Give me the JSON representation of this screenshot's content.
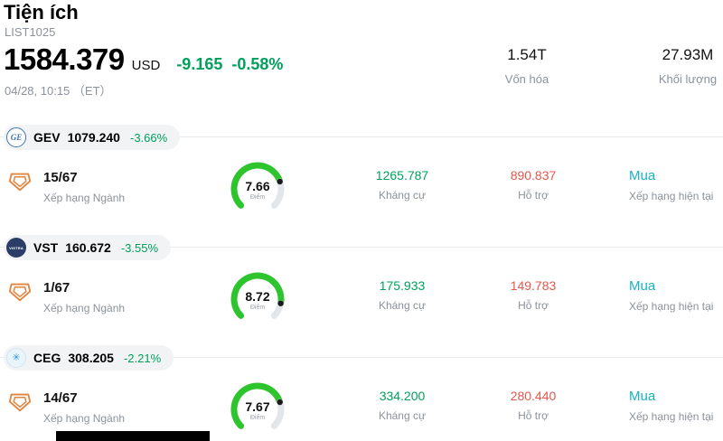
{
  "header": {
    "title": "Tiện ích",
    "list_code": "LIST1025",
    "price": "1584.379",
    "currency": "USD",
    "change": "-9.165",
    "change_pct": "-0.58%",
    "datetime": "04/28, 10:15 （ET）",
    "market_cap_value": "1.54T",
    "market_cap_label": "Vốn hóa",
    "volume_value": "27.93M",
    "volume_label": "Khối lượng"
  },
  "labels": {
    "rank": "Xếp hạng Ngành",
    "score_unit": "Điểm",
    "resistance": "Kháng cự",
    "support": "Hỗ trợ",
    "rating": "Xếp hạng hiện tại"
  },
  "colors": {
    "up_green": "#00a05c",
    "down_red": "#e2574d",
    "buy_teal": "#17b3c1",
    "gauge_green": "#2dc42d",
    "gauge_track": "#e2e5e9"
  },
  "stocks": [
    {
      "symbol": "GEV",
      "price": "1079.240",
      "change_pct": "-3.66%",
      "rank": "15/67",
      "score": "7.66",
      "score_value": 7.66,
      "score_max": 10,
      "resistance": "1265.787",
      "support": "890.837",
      "rating": "Mua",
      "logo_text": "GE"
    },
    {
      "symbol": "VST",
      "price": "160.672",
      "change_pct": "-3.55%",
      "rank": "1/67",
      "score": "8.72",
      "score_value": 8.72,
      "score_max": 10,
      "resistance": "175.933",
      "support": "149.783",
      "rating": "Mua",
      "logo_text": "VISTRA"
    },
    {
      "symbol": "CEG",
      "price": "308.205",
      "change_pct": "-2.21%",
      "rank": "14/67",
      "score": "7.67",
      "score_value": 7.67,
      "score_max": 10,
      "resistance": "334.200",
      "support": "280.440",
      "rating": "Mua",
      "logo_text": "✳"
    }
  ]
}
